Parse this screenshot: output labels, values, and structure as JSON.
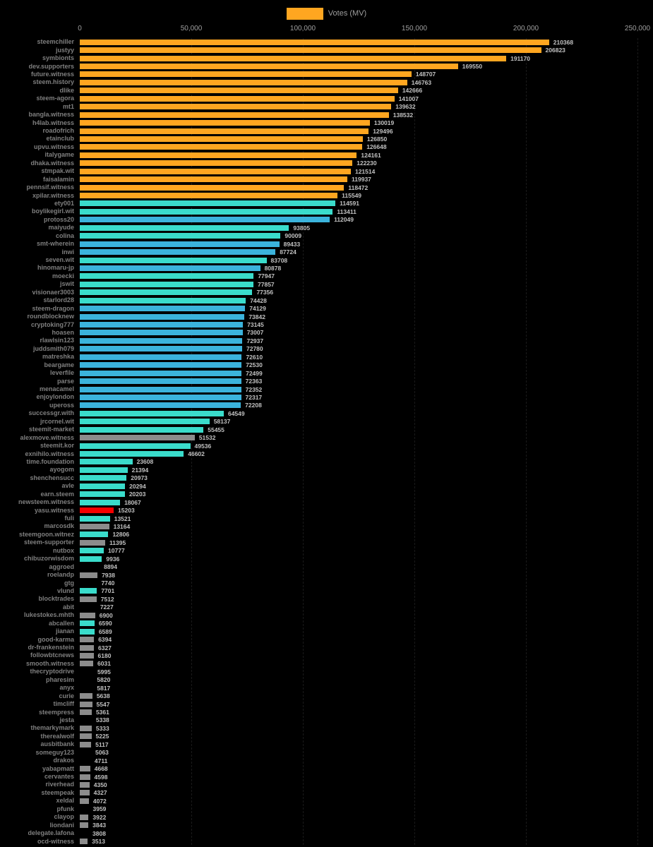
{
  "legend": {
    "label": "Votes (MV)"
  },
  "axis": {
    "ticks": [
      "0",
      "50,000",
      "100,000",
      "150,000",
      "200,000",
      "250,000"
    ]
  },
  "colors": {
    "orange": "#FFA620",
    "cyan": "#3ADCCB",
    "blue": "#3BB3DC",
    "gray": "#8C8C8C",
    "red": "#F50000",
    "none": "#000000"
  },
  "chart_data": {
    "type": "bar",
    "orientation": "horizontal",
    "title": "",
    "legend_label": "Votes (MV)",
    "xlabel": "",
    "ylabel": "",
    "xlim": [
      0,
      250000
    ],
    "grid": true,
    "legend_position": "top-center",
    "bars": [
      {
        "label": "steemchiller",
        "value": 210368,
        "color": "orange"
      },
      {
        "label": "justyy",
        "value": 206823,
        "color": "orange"
      },
      {
        "label": "symbionts",
        "value": 191170,
        "color": "orange"
      },
      {
        "label": "dev.supporters",
        "value": 169550,
        "color": "orange"
      },
      {
        "label": "future.witness",
        "value": 148707,
        "color": "orange"
      },
      {
        "label": "steem.history",
        "value": 146763,
        "color": "orange"
      },
      {
        "label": "dlike",
        "value": 142666,
        "color": "orange"
      },
      {
        "label": "steem-agora",
        "value": 141007,
        "color": "orange"
      },
      {
        "label": "mt1",
        "value": 139632,
        "color": "orange"
      },
      {
        "label": "bangla.witness",
        "value": 138532,
        "color": "orange"
      },
      {
        "label": "h4lab.witness",
        "value": 130019,
        "color": "orange"
      },
      {
        "label": "roadofrich",
        "value": 129496,
        "color": "orange"
      },
      {
        "label": "etainclub",
        "value": 126850,
        "color": "orange"
      },
      {
        "label": "upvu.witness",
        "value": 126648,
        "color": "orange"
      },
      {
        "label": "italygame",
        "value": 124161,
        "color": "orange"
      },
      {
        "label": "dhaka.witness",
        "value": 122230,
        "color": "orange"
      },
      {
        "label": "stmpak.wit",
        "value": 121514,
        "color": "orange"
      },
      {
        "label": "faisalamin",
        "value": 119937,
        "color": "orange"
      },
      {
        "label": "pennsif.witness",
        "value": 118472,
        "color": "orange"
      },
      {
        "label": "xpilar.witness",
        "value": 115549,
        "color": "orange"
      },
      {
        "label": "ety001",
        "value": 114591,
        "color": "cyan"
      },
      {
        "label": "boylikegirl.wit",
        "value": 113411,
        "color": "cyan"
      },
      {
        "label": "protoss20",
        "value": 112049,
        "color": "blue"
      },
      {
        "label": "maiyude",
        "value": 93805,
        "color": "cyan"
      },
      {
        "label": "colina",
        "value": 90009,
        "color": "cyan"
      },
      {
        "label": "smt-wherein",
        "value": 89433,
        "color": "blue"
      },
      {
        "label": "inwi",
        "value": 87724,
        "color": "blue"
      },
      {
        "label": "seven.wit",
        "value": 83708,
        "color": "cyan"
      },
      {
        "label": "hinomaru-jp",
        "value": 80878,
        "color": "blue"
      },
      {
        "label": "moecki",
        "value": 77947,
        "color": "cyan"
      },
      {
        "label": "jswit",
        "value": 77857,
        "color": "cyan"
      },
      {
        "label": "visionaer3003",
        "value": 77356,
        "color": "cyan"
      },
      {
        "label": "starlord28",
        "value": 74428,
        "color": "cyan"
      },
      {
        "label": "steem-dragon",
        "value": 74129,
        "color": "blue"
      },
      {
        "label": "roundblocknew",
        "value": 73842,
        "color": "blue"
      },
      {
        "label": "cryptoking777",
        "value": 73145,
        "color": "blue"
      },
      {
        "label": "hoasen",
        "value": 73007,
        "color": "blue"
      },
      {
        "label": "rlawlsin123",
        "value": 72937,
        "color": "blue"
      },
      {
        "label": "juddsmith079",
        "value": 72780,
        "color": "blue"
      },
      {
        "label": "matreshka",
        "value": 72610,
        "color": "blue"
      },
      {
        "label": "beargame",
        "value": 72530,
        "color": "blue"
      },
      {
        "label": "leverfile",
        "value": 72499,
        "color": "blue"
      },
      {
        "label": "parse",
        "value": 72363,
        "color": "blue"
      },
      {
        "label": "menacamel",
        "value": 72352,
        "color": "blue"
      },
      {
        "label": "enjoylondon",
        "value": 72317,
        "color": "blue"
      },
      {
        "label": "upeross",
        "value": 72208,
        "color": "blue"
      },
      {
        "label": "successgr.with",
        "value": 64549,
        "color": "cyan"
      },
      {
        "label": "jrcornel.wit",
        "value": 58137,
        "color": "cyan"
      },
      {
        "label": "steemit-market",
        "value": 55455,
        "color": "cyan"
      },
      {
        "label": "alexmove.witness",
        "value": 51532,
        "color": "gray"
      },
      {
        "label": "steemit.kor",
        "value": 49536,
        "color": "cyan"
      },
      {
        "label": "exnihilo.witness",
        "value": 46602,
        "color": "cyan"
      },
      {
        "label": "time.foundation",
        "value": 23608,
        "color": "cyan"
      },
      {
        "label": "ayogom",
        "value": 21394,
        "color": "cyan"
      },
      {
        "label": "shenchensucc",
        "value": 20973,
        "color": "cyan"
      },
      {
        "label": "avle",
        "value": 20294,
        "color": "cyan"
      },
      {
        "label": "earn.steem",
        "value": 20203,
        "color": "cyan"
      },
      {
        "label": "newsteem.witness",
        "value": 18067,
        "color": "cyan"
      },
      {
        "label": "yasu.witness",
        "value": 15203,
        "color": "red"
      },
      {
        "label": "fuli",
        "value": 13521,
        "color": "cyan"
      },
      {
        "label": "marcosdk",
        "value": 13164,
        "color": "gray"
      },
      {
        "label": "steemgoon.witnez",
        "value": 12806,
        "color": "cyan"
      },
      {
        "label": "steem-supporter",
        "value": 11395,
        "color": "gray"
      },
      {
        "label": "nutbox",
        "value": 10777,
        "color": "cyan"
      },
      {
        "label": "chibuzorwisdom",
        "value": 9936,
        "color": "cyan"
      },
      {
        "label": "aggroed",
        "value": 8894,
        "color": "none"
      },
      {
        "label": "roelandp",
        "value": 7938,
        "color": "gray"
      },
      {
        "label": "gtg",
        "value": 7740,
        "color": "none"
      },
      {
        "label": "vlund",
        "value": 7701,
        "color": "cyan"
      },
      {
        "label": "blocktrades",
        "value": 7512,
        "color": "gray"
      },
      {
        "label": "abit",
        "value": 7227,
        "color": "none"
      },
      {
        "label": "lukestokes.mhth",
        "value": 6900,
        "color": "gray"
      },
      {
        "label": "abcallen",
        "value": 6590,
        "color": "cyan"
      },
      {
        "label": "jianan",
        "value": 6589,
        "color": "cyan"
      },
      {
        "label": "good-karma",
        "value": 6394,
        "color": "gray"
      },
      {
        "label": "dr-frankenstein",
        "value": 6327,
        "color": "gray"
      },
      {
        "label": "followbtcnews",
        "value": 6180,
        "color": "gray"
      },
      {
        "label": "smooth.witness",
        "value": 6031,
        "color": "gray"
      },
      {
        "label": "thecryptodrive",
        "value": 5995,
        "color": "none"
      },
      {
        "label": "pharesim",
        "value": 5820,
        "color": "none"
      },
      {
        "label": "anyx",
        "value": 5817,
        "color": "none"
      },
      {
        "label": "curie",
        "value": 5638,
        "color": "gray"
      },
      {
        "label": "timcliff",
        "value": 5547,
        "color": "gray"
      },
      {
        "label": "steempress",
        "value": 5361,
        "color": "gray"
      },
      {
        "label": "jesta",
        "value": 5338,
        "color": "none"
      },
      {
        "label": "themarkymark",
        "value": 5333,
        "color": "gray"
      },
      {
        "label": "therealwolf",
        "value": 5225,
        "color": "gray"
      },
      {
        "label": "ausbitbank",
        "value": 5117,
        "color": "gray"
      },
      {
        "label": "someguy123",
        "value": 5063,
        "color": "none"
      },
      {
        "label": "drakos",
        "value": 4711,
        "color": "none"
      },
      {
        "label": "yabapmatt",
        "value": 4668,
        "color": "gray"
      },
      {
        "label": "cervantes",
        "value": 4598,
        "color": "gray"
      },
      {
        "label": "riverhead",
        "value": 4350,
        "color": "gray"
      },
      {
        "label": "steempeak",
        "value": 4327,
        "color": "gray"
      },
      {
        "label": "xeldal",
        "value": 4072,
        "color": "gray"
      },
      {
        "label": "pfunk",
        "value": 3959,
        "color": "none"
      },
      {
        "label": "clayop",
        "value": 3922,
        "color": "gray"
      },
      {
        "label": "liondani",
        "value": 3843,
        "color": "gray"
      },
      {
        "label": "delegate.lafona",
        "value": 3808,
        "color": "none"
      },
      {
        "label": "ocd-witness",
        "value": 3513,
        "color": "gray"
      }
    ]
  }
}
